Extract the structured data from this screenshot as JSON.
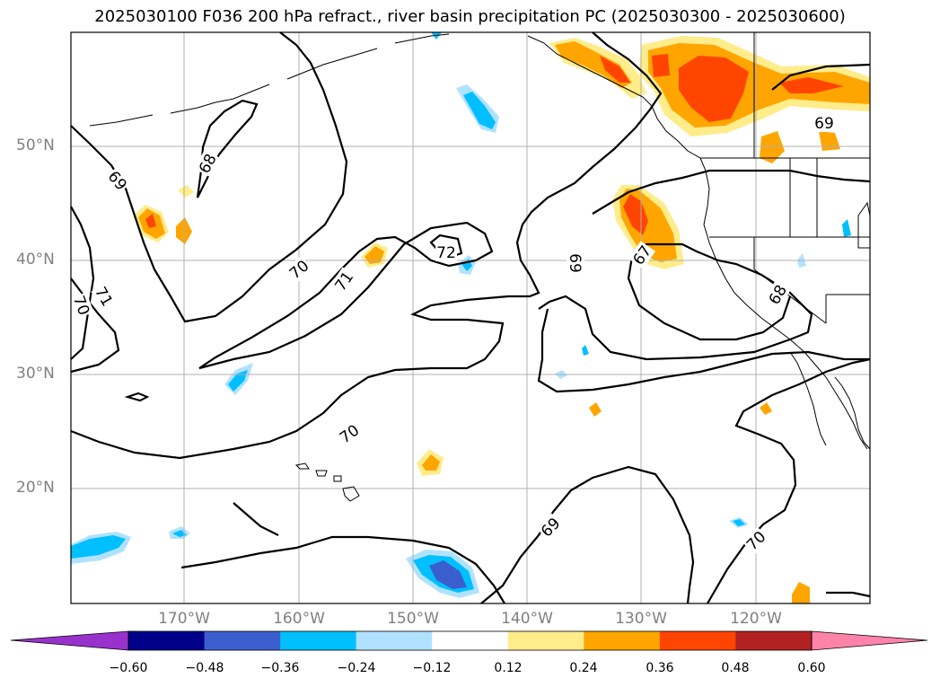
{
  "title": "2025030100 F036 200 hPa refract., river basin precipitation PC (2025030300 - 2025030600)",
  "lat_labels": [
    "50°N",
    "40°N",
    "30°N",
    "20°N"
  ],
  "lon_labels": [
    "170°W",
    "160°W",
    "150°W",
    "140°W",
    "130°W",
    "120°W"
  ],
  "contour_labels": [
    "68",
    "69",
    "70",
    "71",
    "70",
    "71",
    "72",
    "70",
    "69",
    "67",
    "68",
    "69",
    "69",
    "70"
  ],
  "colorbar": {
    "colors": [
      "#9932cc",
      "#00008b",
      "#3a5fcd",
      "#00bfff",
      "#b0e2ff",
      "#ffffff",
      "#ffec8b",
      "#ffa500",
      "#ff4500",
      "#b22222",
      "#ff82ab"
    ],
    "tick_labels": [
      "−0.60",
      "−0.48",
      "−0.36",
      "−0.24",
      "−0.12",
      "0.12",
      "0.24",
      "0.36",
      "0.48",
      "0.60"
    ]
  }
}
